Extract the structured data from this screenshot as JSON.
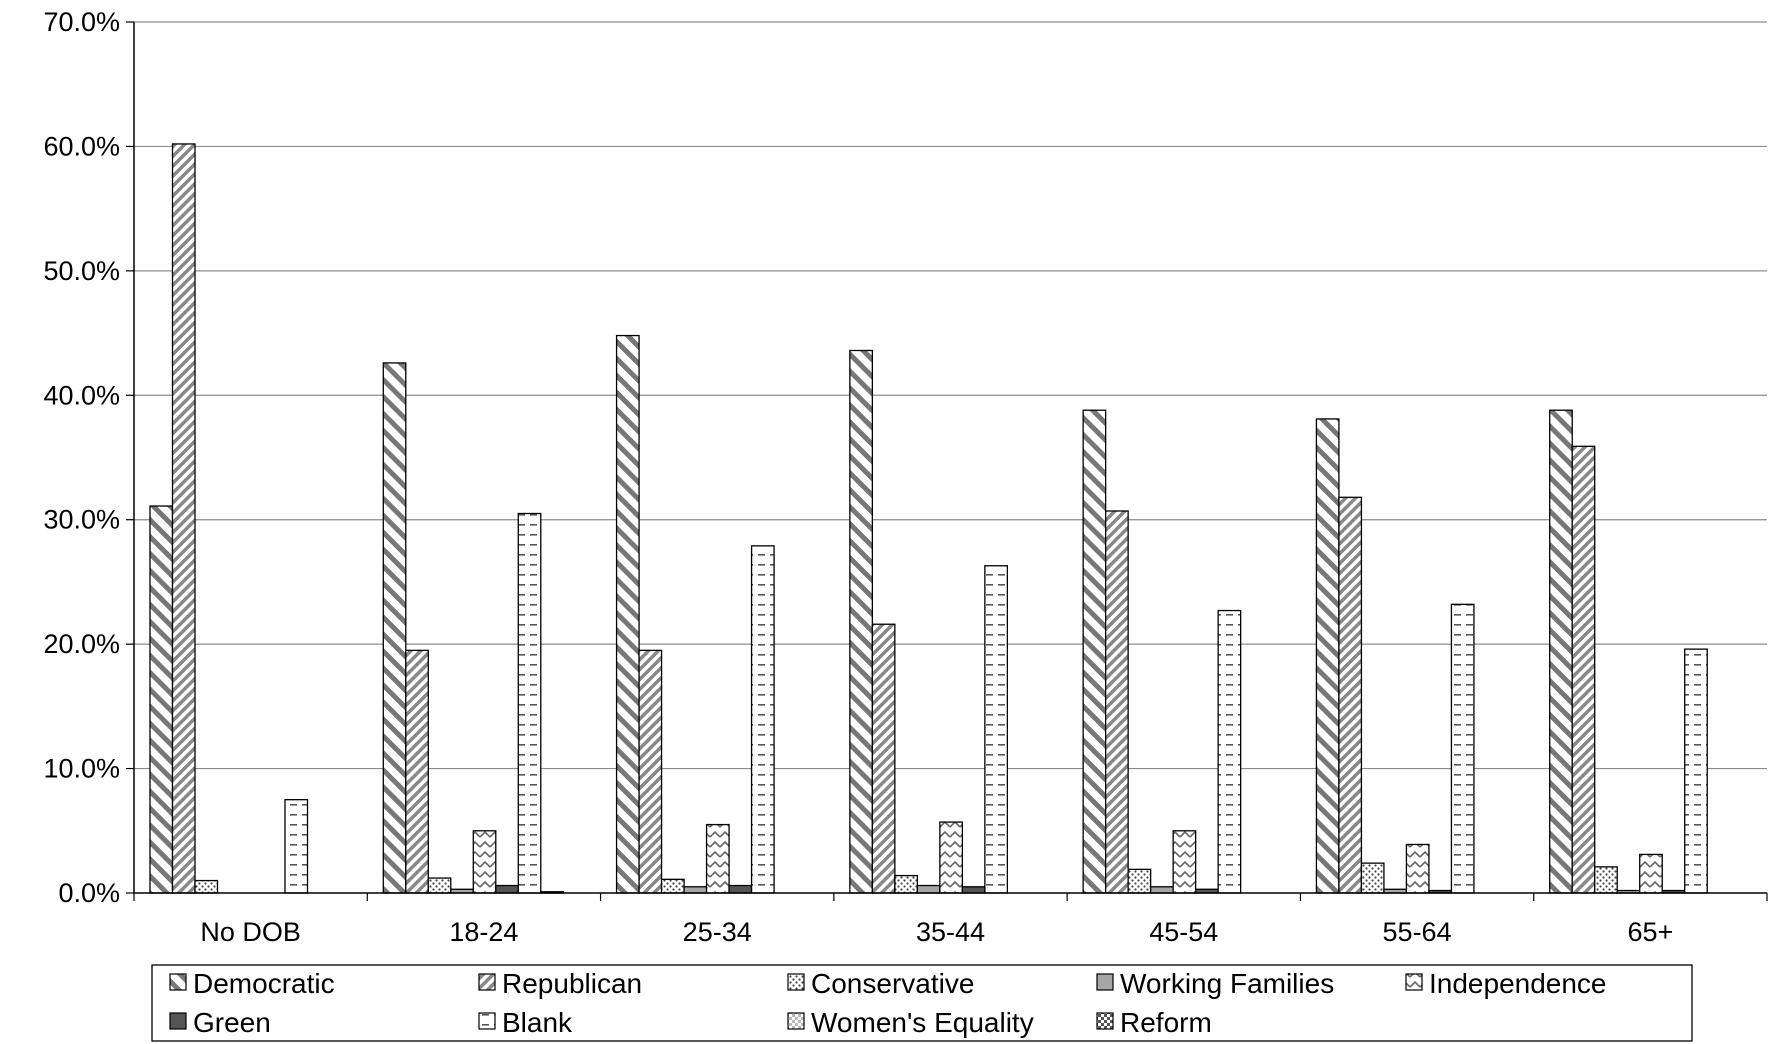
{
  "chart_data": {
    "type": "bar",
    "title": "",
    "xlabel": "",
    "ylabel": "",
    "ylim": [
      0,
      0.7
    ],
    "y_ticks": [
      "0.0%",
      "10.0%",
      "20.0%",
      "30.0%",
      "40.0%",
      "50.0%",
      "60.0%",
      "70.0%"
    ],
    "grid": true,
    "legend_position": "bottom",
    "categories": [
      "No DOB",
      "18-24",
      "25-34",
      "35-44",
      "45-54",
      "55-64",
      "65+"
    ],
    "series": [
      {
        "name": "Democratic",
        "values": [
          0.311,
          0.426,
          0.448,
          0.436,
          0.388,
          0.381,
          0.388
        ]
      },
      {
        "name": "Republican",
        "values": [
          0.602,
          0.195,
          0.195,
          0.216,
          0.307,
          0.318,
          0.359
        ]
      },
      {
        "name": "Conservative",
        "values": [
          0.01,
          0.012,
          0.011,
          0.014,
          0.019,
          0.024,
          0.021
        ]
      },
      {
        "name": "Working Families",
        "values": [
          0.0,
          0.003,
          0.005,
          0.006,
          0.005,
          0.003,
          0.002
        ]
      },
      {
        "name": "Independence",
        "values": [
          0.0,
          0.05,
          0.055,
          0.057,
          0.05,
          0.039,
          0.031
        ]
      },
      {
        "name": "Green",
        "values": [
          0.0,
          0.006,
          0.006,
          0.005,
          0.003,
          0.002,
          0.002
        ]
      },
      {
        "name": "Blank",
        "values": [
          0.075,
          0.305,
          0.279,
          0.263,
          0.227,
          0.232,
          0.196
        ]
      },
      {
        "name": "Women's Equality",
        "values": [
          0.0,
          0.001,
          0.0,
          0.0,
          0.0,
          0.0,
          0.0
        ]
      },
      {
        "name": "Reform",
        "values": [
          0.0,
          0.0,
          0.0,
          0.0,
          0.0,
          0.0,
          0.0
        ]
      }
    ]
  }
}
